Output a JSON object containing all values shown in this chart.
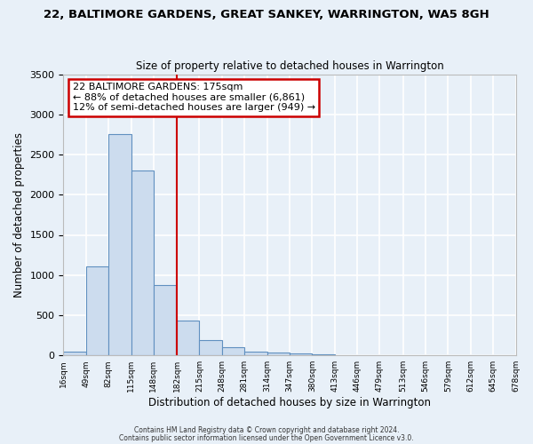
{
  "title": "22, BALTIMORE GARDENS, GREAT SANKEY, WARRINGTON, WA5 8GH",
  "subtitle": "Size of property relative to detached houses in Warrington",
  "xlabel": "Distribution of detached houses by size in Warrington",
  "ylabel": "Number of detached properties",
  "bar_left_edges": [
    16,
    49,
    82,
    115,
    148,
    182,
    215,
    248,
    281,
    314,
    347,
    380,
    413,
    446,
    479,
    513,
    546,
    579,
    612,
    645
  ],
  "bar_heights": [
    50,
    1110,
    2750,
    2300,
    880,
    430,
    185,
    100,
    50,
    30,
    20,
    10,
    5,
    3,
    1,
    0,
    0,
    0,
    0,
    0
  ],
  "bin_width": 33,
  "tick_labels": [
    "16sqm",
    "49sqm",
    "82sqm",
    "115sqm",
    "148sqm",
    "182sqm",
    "215sqm",
    "248sqm",
    "281sqm",
    "314sqm",
    "347sqm",
    "380sqm",
    "413sqm",
    "446sqm",
    "479sqm",
    "513sqm",
    "546sqm",
    "579sqm",
    "612sqm",
    "645sqm",
    "678sqm"
  ],
  "bar_color": "#ccdcee",
  "bar_edge_color": "#6090c0",
  "vline_x": 182,
  "vline_color": "#cc0000",
  "ylim": [
    0,
    3500
  ],
  "yticks": [
    0,
    500,
    1000,
    1500,
    2000,
    2500,
    3000,
    3500
  ],
  "annotation_title": "22 BALTIMORE GARDENS: 175sqm",
  "annotation_line1": "← 88% of detached houses are smaller (6,861)",
  "annotation_line2": "12% of semi-detached houses are larger (949) →",
  "annotation_box_color": "white",
  "annotation_box_edge": "#cc0000",
  "footnote1": "Contains HM Land Registry data © Crown copyright and database right 2024.",
  "footnote2": "Contains public sector information licensed under the Open Government Licence v3.0.",
  "background_color": "#e8f0f8",
  "plot_bg_color": "#e8f0f8",
  "grid_color": "white"
}
